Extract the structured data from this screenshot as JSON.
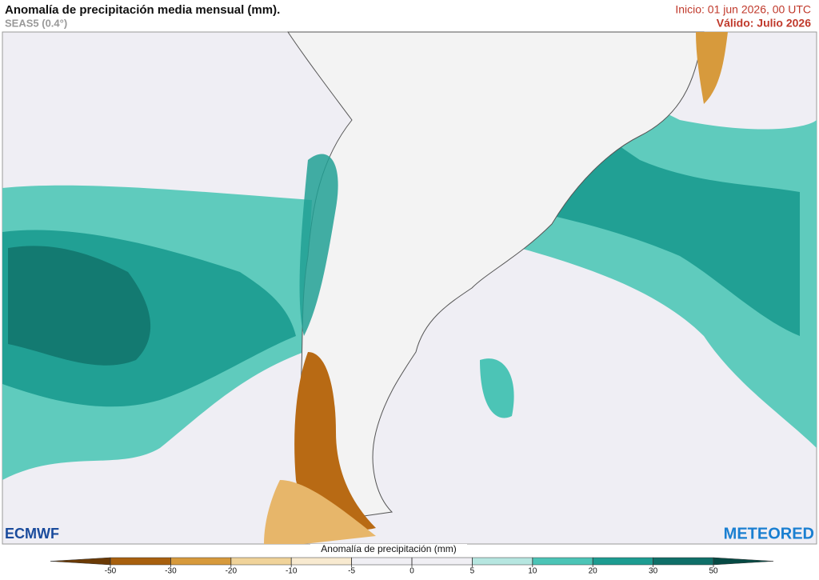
{
  "header": {
    "title": "Anomalía de precipitación media mensual (mm).",
    "subtitle": "SEAS5 (0.4°)",
    "init": "Inicio: 01 jun 2026, 00 UTC",
    "valid": "Válido: Julio 2026"
  },
  "logos": {
    "left": "ECMWF",
    "right": "METEORED"
  },
  "colorbar": {
    "label": "Anomalía de precipitación (mm)",
    "ticks": [
      -50,
      -30,
      -20,
      -10,
      -5,
      0,
      5,
      10,
      20,
      30,
      50
    ],
    "colors": [
      "#6b3a05",
      "#a8600e",
      "#d79a3c",
      "#f0d39a",
      "#f8ead0",
      "#f0eff4",
      "#f0eff4",
      "#b6e6e0",
      "#4cc4b6",
      "#1d9c91",
      "#0f6f68",
      "#064a44"
    ]
  }
}
